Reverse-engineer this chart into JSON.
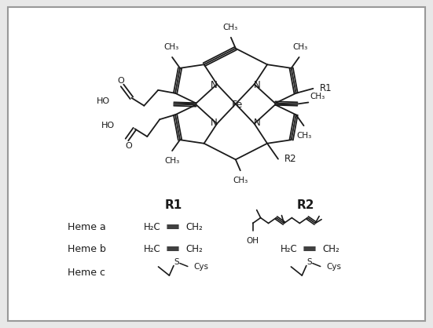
{
  "bg_color": "#e8e8e8",
  "inner_bg": "#ffffff",
  "border_color": "#999999",
  "figsize": [
    5.51,
    4.18
  ],
  "dpi": 100,
  "r1_label": "R1",
  "r2_label": "R2",
  "heme_labels": [
    "Heme a",
    "Heme b",
    "Heme c"
  ],
  "fe_label": "Fe",
  "n_label": "N",
  "ho_label": "HO",
  "oh_label": "OH",
  "o_label": "O",
  "cys_label": "Cys",
  "s_label": "S"
}
